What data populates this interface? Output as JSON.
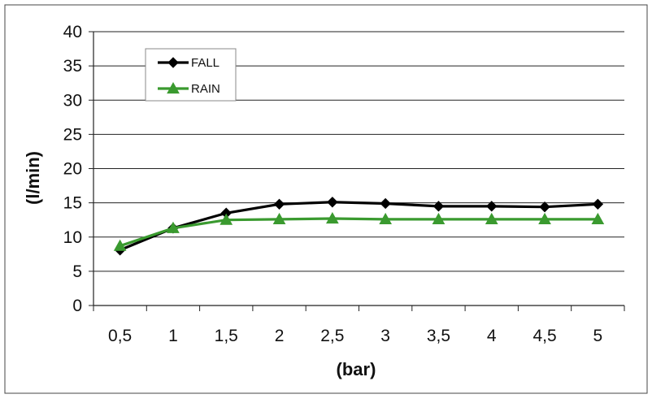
{
  "chart_data": {
    "type": "line",
    "categories": [
      "0,5",
      "1",
      "1,5",
      "2",
      "2,5",
      "3",
      "3,5",
      "4",
      "4,5",
      "5"
    ],
    "series": [
      {
        "name": "FALL",
        "values": [
          8.1,
          11.3,
          13.5,
          14.8,
          15.1,
          14.9,
          14.5,
          14.5,
          14.4,
          14.8
        ],
        "color": "#000000",
        "marker": "diamond"
      },
      {
        "name": "RAIN",
        "values": [
          8.7,
          11.3,
          12.5,
          12.6,
          12.7,
          12.6,
          12.6,
          12.6,
          12.6,
          12.6
        ],
        "color": "#3a9a2f",
        "marker": "triangle"
      }
    ],
    "ylim": [
      0,
      40
    ],
    "yticks": [
      0,
      5,
      10,
      15,
      20,
      25,
      30,
      35,
      40
    ],
    "xlabel": "(bar)",
    "ylabel": "(l/min)",
    "grid": true,
    "legend": "top-left"
  }
}
